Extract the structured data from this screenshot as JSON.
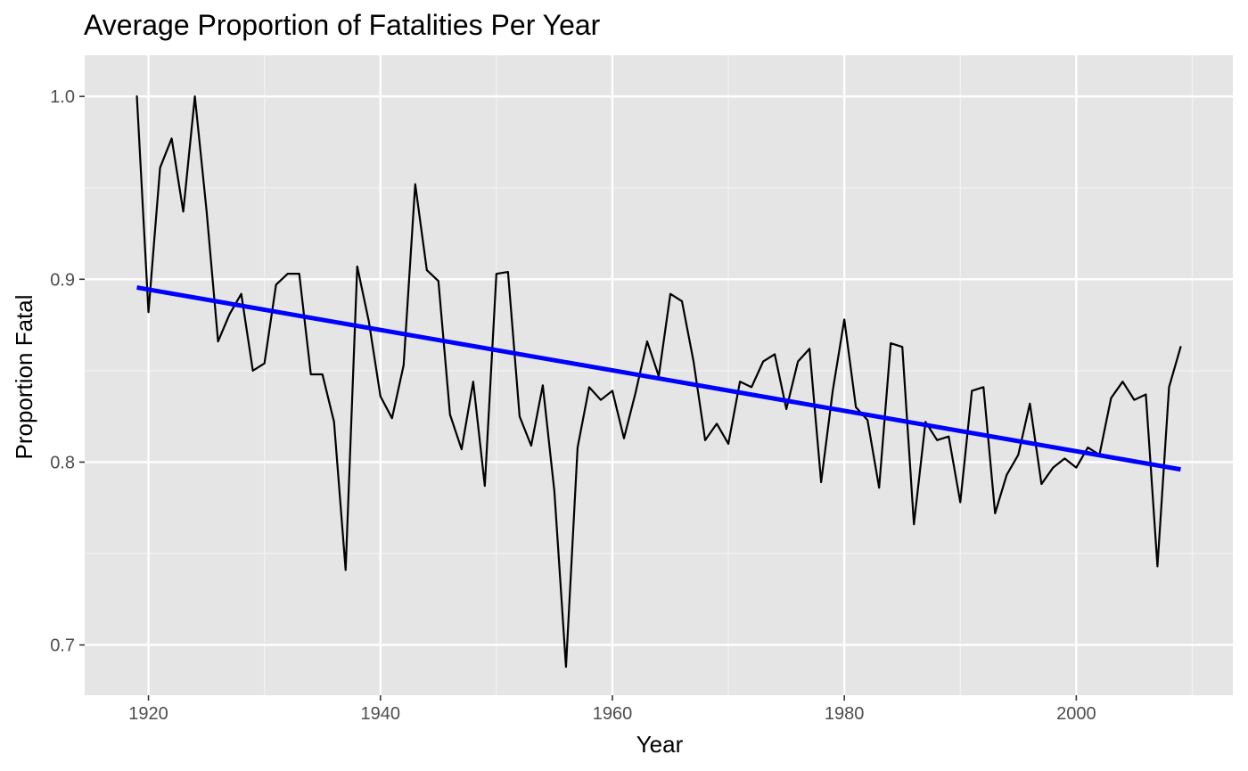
{
  "chart_data": {
    "type": "line",
    "title": "Average Proportion of Fatalities Per Year",
    "xlabel": "Year",
    "ylabel": "Proportion Fatal",
    "xlim": [
      1914.5,
      2013.5
    ],
    "ylim": [
      0.6725,
      1.0225
    ],
    "x_ticks": [
      1920,
      1940,
      1960,
      1980,
      2000
    ],
    "y_ticks": [
      0.7,
      0.8,
      0.9,
      1.0
    ],
    "x_tick_labels": [
      "1920",
      "1940",
      "1960",
      "1980",
      "2000"
    ],
    "y_tick_labels": [
      "0.7",
      "0.8",
      "0.9",
      "1.0"
    ],
    "grid": true,
    "background": "#e5e5e5",
    "series": [
      {
        "kind": "line",
        "color": "#000000",
        "x": [
          1919,
          1920,
          1921,
          1922,
          1923,
          1924,
          1925,
          1926,
          1927,
          1928,
          1929,
          1930,
          1931,
          1932,
          1933,
          1934,
          1935,
          1936,
          1937,
          1938,
          1939,
          1940,
          1941,
          1942,
          1943,
          1944,
          1945,
          1946,
          1947,
          1948,
          1949,
          1950,
          1951,
          1952,
          1953,
          1954,
          1955,
          1956,
          1957,
          1958,
          1959,
          1960,
          1961,
          1962,
          1963,
          1964,
          1965,
          1966,
          1967,
          1968,
          1969,
          1970,
          1971,
          1972,
          1973,
          1974,
          1975,
          1976,
          1977,
          1978,
          1979,
          1980,
          1981,
          1982,
          1983,
          1984,
          1985,
          1986,
          1987,
          1988,
          1989,
          1990,
          1991,
          1992,
          1993,
          1994,
          1995,
          1996,
          1997,
          1998,
          1999,
          2000,
          2001,
          2002,
          2003,
          2004,
          2005,
          2006,
          2007,
          2008,
          2009
        ],
        "y": [
          1.0,
          0.882,
          0.961,
          0.977,
          0.937,
          1.0,
          0.938,
          0.866,
          0.881,
          0.892,
          0.85,
          0.854,
          0.897,
          0.903,
          0.903,
          0.848,
          0.848,
          0.822,
          0.741,
          0.907,
          0.877,
          0.836,
          0.824,
          0.853,
          0.952,
          0.905,
          0.899,
          0.826,
          0.807,
          0.844,
          0.787,
          0.903,
          0.904,
          0.825,
          0.809,
          0.842,
          0.784,
          0.688,
          0.808,
          0.841,
          0.834,
          0.839,
          0.813,
          0.838,
          0.866,
          0.847,
          0.892,
          0.888,
          0.855,
          0.812,
          0.821,
          0.81,
          0.844,
          0.841,
          0.855,
          0.859,
          0.829,
          0.855,
          0.862,
          0.789,
          0.839,
          0.878,
          0.83,
          0.823,
          0.786,
          0.865,
          0.863,
          0.766,
          0.822,
          0.812,
          0.814,
          0.778,
          0.839,
          0.841,
          0.772,
          0.793,
          0.804,
          0.832,
          0.788,
          0.797,
          0.802,
          0.797,
          0.808,
          0.804,
          0.835,
          0.844,
          0.834,
          0.837,
          0.743,
          0.841,
          0.863
        ]
      },
      {
        "kind": "trend",
        "color": "#0000ff",
        "x": [
          1919,
          2009
        ],
        "y": [
          0.8955,
          0.796
        ]
      }
    ]
  }
}
